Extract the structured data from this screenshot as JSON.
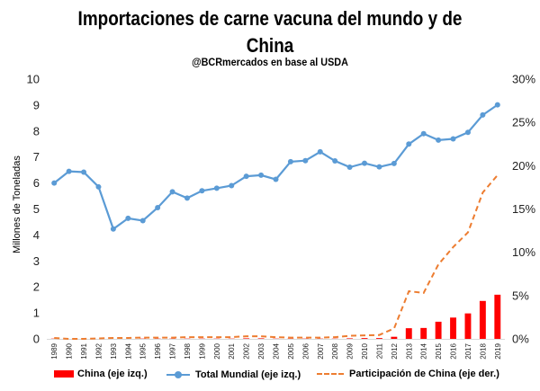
{
  "title_line1": "Importaciones de carne vacuna del mundo y de",
  "title_line2": "China",
  "subtitle": "@BCRmercados en base al USDA",
  "chart_data": {
    "type": "bar",
    "categories": [
      "1989",
      "1990",
      "1991",
      "1992",
      "1993",
      "1994",
      "1995",
      "1996",
      "1997",
      "1998",
      "1999",
      "2000",
      "2001",
      "2002",
      "2003",
      "2004",
      "2005",
      "2006",
      "2007",
      "2008",
      "2009",
      "2010",
      "2011",
      "2012",
      "2013",
      "2014",
      "2015",
      "2016",
      "2017",
      "2018",
      "2019"
    ],
    "ylabel": "Millones de Toneladas",
    "ylim": [
      0,
      10
    ],
    "y_ticks": [
      "0",
      "1",
      "2",
      "3",
      "4",
      "5",
      "6",
      "7",
      "8",
      "9",
      "10"
    ],
    "y2lim": [
      0,
      30
    ],
    "y2_ticks": [
      "0%",
      "5%",
      "10%",
      "15%",
      "20%",
      "25%",
      "30%"
    ],
    "series": [
      {
        "name": "China (eje izq.)",
        "type": "bar",
        "axis": "left",
        "color": "#ff0000",
        "values": [
          0.01,
          0.0,
          0.0,
          0.0,
          0.0,
          0.0,
          0.01,
          0.01,
          0.01,
          0.01,
          0.01,
          0.01,
          0.01,
          0.02,
          0.02,
          0.01,
          0.01,
          0.01,
          0.01,
          0.01,
          0.02,
          0.03,
          0.03,
          0.08,
          0.41,
          0.42,
          0.66,
          0.82,
          0.98,
          1.46,
          1.7
        ]
      },
      {
        "name": "Total Mundial (eje izq.)",
        "type": "line",
        "axis": "left",
        "color": "#5b9bd5",
        "values": [
          6.0,
          6.45,
          6.42,
          5.85,
          4.23,
          4.64,
          4.55,
          5.05,
          5.66,
          5.42,
          5.7,
          5.8,
          5.9,
          6.26,
          6.3,
          6.14,
          6.82,
          6.86,
          7.2,
          6.85,
          6.61,
          6.76,
          6.62,
          6.75,
          7.5,
          7.9,
          7.65,
          7.7,
          7.95,
          8.62,
          9.01
        ]
      },
      {
        "name": "Participación de China (eje der.)",
        "type": "line",
        "axis": "right",
        "color": "#ed7d31",
        "dashed": true,
        "values": [
          0.1,
          0.0,
          0.0,
          0.05,
          0.1,
          0.1,
          0.15,
          0.15,
          0.15,
          0.2,
          0.2,
          0.2,
          0.2,
          0.3,
          0.3,
          0.2,
          0.15,
          0.15,
          0.15,
          0.2,
          0.35,
          0.4,
          0.45,
          1.2,
          5.5,
          5.3,
          8.6,
          10.6,
          12.3,
          16.9,
          18.9
        ]
      }
    ],
    "legend_position": "bottom",
    "grid": false
  }
}
